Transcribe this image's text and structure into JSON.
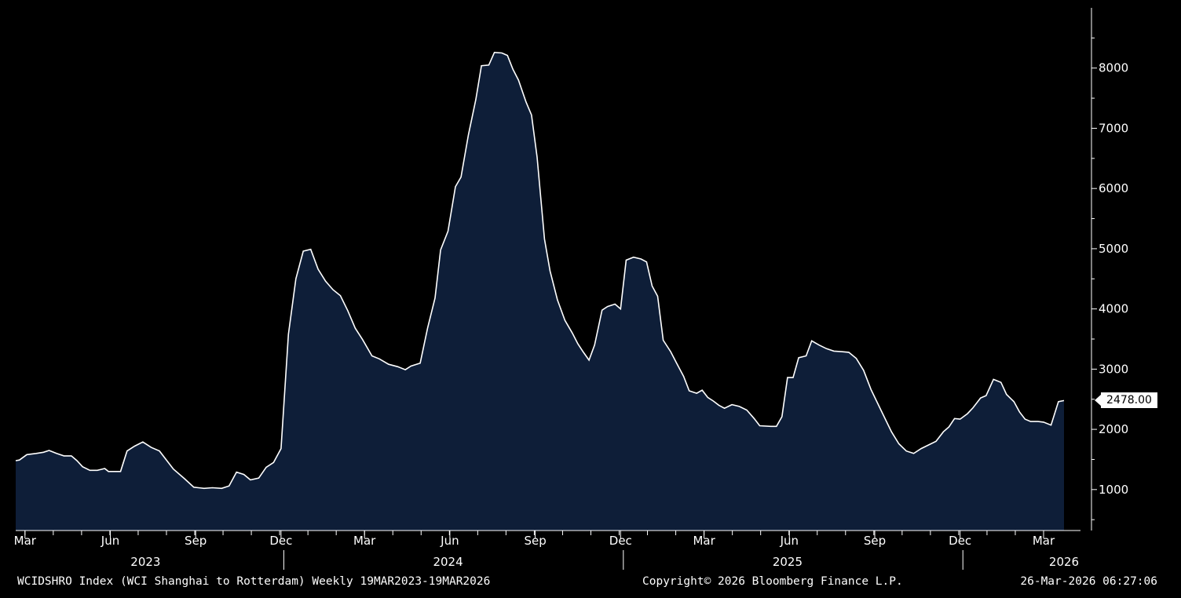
{
  "footer": {
    "left": "WCIDSHRO Index (WCI Shanghai to Rotterdam) Weekly 19MAR2023-19MAR2026",
    "center": "Copyright© 2026 Bloomberg Finance L.P.",
    "right": "26-Mar-2026 06:27:06"
  },
  "last_value_label": "2478.00",
  "colors": {
    "background": "#000000",
    "area_fill": "#0e1e38",
    "line": "#ffffff"
  },
  "chart_data": {
    "type": "area",
    "title": "",
    "xlabel": "",
    "ylabel": "",
    "series": [
      {
        "values": [
          [
            0,
            1480
          ],
          [
            4,
            1490
          ],
          [
            12,
            1580
          ],
          [
            22,
            1600
          ],
          [
            30,
            1620
          ],
          [
            36,
            1650
          ],
          [
            44,
            1600
          ],
          [
            52,
            1560
          ],
          [
            60,
            1560
          ],
          [
            66,
            1480
          ],
          [
            72,
            1380
          ],
          [
            80,
            1320
          ],
          [
            88,
            1320
          ],
          [
            96,
            1350
          ],
          [
            100,
            1300
          ],
          [
            108,
            1300
          ],
          [
            113,
            1300
          ],
          [
            120,
            1640
          ],
          [
            128,
            1720
          ],
          [
            137,
            1790
          ],
          [
            146,
            1700
          ],
          [
            155,
            1640
          ],
          [
            162,
            1500
          ],
          [
            170,
            1340
          ],
          [
            182,
            1180
          ],
          [
            192,
            1040
          ],
          [
            203,
            1020
          ],
          [
            212,
            1030
          ],
          [
            222,
            1020
          ],
          [
            230,
            1060
          ],
          [
            238,
            1290
          ],
          [
            246,
            1250
          ],
          [
            253,
            1160
          ],
          [
            262,
            1190
          ],
          [
            270,
            1370
          ],
          [
            278,
            1450
          ],
          [
            286,
            1680
          ],
          [
            294,
            3580
          ],
          [
            302,
            4500
          ],
          [
            310,
            4960
          ],
          [
            318,
            4990
          ],
          [
            326,
            4660
          ],
          [
            334,
            4460
          ],
          [
            342,
            4320
          ],
          [
            350,
            4220
          ],
          [
            358,
            3970
          ],
          [
            366,
            3680
          ],
          [
            374,
            3490
          ],
          [
            384,
            3220
          ],
          [
            392,
            3170
          ],
          [
            402,
            3080
          ],
          [
            412,
            3040
          ],
          [
            420,
            2990
          ],
          [
            426,
            3050
          ],
          [
            436,
            3100
          ],
          [
            444,
            3680
          ],
          [
            452,
            4180
          ],
          [
            458,
            4980
          ],
          [
            466,
            5290
          ],
          [
            474,
            6030
          ],
          [
            480,
            6190
          ],
          [
            488,
            6890
          ],
          [
            496,
            7480
          ],
          [
            502,
            8040
          ],
          [
            510,
            8050
          ],
          [
            516,
            8260
          ],
          [
            524,
            8250
          ],
          [
            530,
            8210
          ],
          [
            536,
            7980
          ],
          [
            542,
            7800
          ],
          [
            550,
            7440
          ],
          [
            556,
            7220
          ],
          [
            562,
            6520
          ],
          [
            570,
            5160
          ],
          [
            576,
            4630
          ],
          [
            584,
            4150
          ],
          [
            592,
            3810
          ],
          [
            600,
            3600
          ],
          [
            606,
            3420
          ],
          [
            612,
            3280
          ],
          [
            618,
            3150
          ],
          [
            624,
            3400
          ],
          [
            632,
            3980
          ],
          [
            638,
            4040
          ],
          [
            646,
            4080
          ],
          [
            652,
            4000
          ],
          [
            658,
            4810
          ],
          [
            666,
            4860
          ],
          [
            674,
            4830
          ],
          [
            680,
            4780
          ],
          [
            686,
            4380
          ],
          [
            692,
            4210
          ],
          [
            698,
            3480
          ],
          [
            706,
            3290
          ],
          [
            712,
            3110
          ],
          [
            720,
            2880
          ],
          [
            726,
            2640
          ],
          [
            734,
            2600
          ],
          [
            740,
            2650
          ],
          [
            746,
            2530
          ],
          [
            752,
            2470
          ],
          [
            758,
            2400
          ],
          [
            764,
            2350
          ],
          [
            772,
            2410
          ],
          [
            780,
            2380
          ],
          [
            788,
            2320
          ],
          [
            796,
            2180
          ],
          [
            802,
            2060
          ],
          [
            814,
            2050
          ],
          [
            820,
            2050
          ],
          [
            826,
            2210
          ],
          [
            832,
            2860
          ],
          [
            838,
            2860
          ],
          [
            844,
            3190
          ],
          [
            852,
            3220
          ],
          [
            858,
            3470
          ],
          [
            866,
            3400
          ],
          [
            874,
            3340
          ],
          [
            882,
            3300
          ],
          [
            890,
            3290
          ],
          [
            898,
            3280
          ],
          [
            906,
            3180
          ],
          [
            914,
            2980
          ],
          [
            922,
            2660
          ],
          [
            932,
            2340
          ],
          [
            944,
            1960
          ],
          [
            952,
            1760
          ],
          [
            960,
            1640
          ],
          [
            968,
            1600
          ],
          [
            976,
            1680
          ],
          [
            984,
            1740
          ],
          [
            992,
            1800
          ],
          [
            1000,
            1960
          ],
          [
            1006,
            2040
          ],
          [
            1012,
            2180
          ],
          [
            1018,
            2170
          ],
          [
            1026,
            2260
          ],
          [
            1032,
            2360
          ],
          [
            1040,
            2520
          ],
          [
            1046,
            2560
          ],
          [
            1054,
            2830
          ],
          [
            1062,
            2780
          ],
          [
            1068,
            2580
          ],
          [
            1076,
            2460
          ],
          [
            1082,
            2290
          ],
          [
            1088,
            2170
          ],
          [
            1094,
            2130
          ],
          [
            1102,
            2130
          ],
          [
            1108,
            2120
          ],
          [
            1116,
            2070
          ],
          [
            1124,
            2460
          ],
          [
            1130,
            2478
          ]
        ]
      }
    ],
    "x_min": 0,
    "x_max": 1130,
    "y_ticks": [
      1000,
      2000,
      3000,
      4000,
      5000,
      6000,
      7000,
      8000
    ],
    "y_min": 320,
    "y_max": 9000,
    "x_ticks": [
      {
        "day": 10,
        "label": "Mar"
      },
      {
        "day": 102,
        "label": "Jun"
      },
      {
        "day": 194,
        "label": "Sep"
      },
      {
        "day": 286,
        "label": "Dec"
      },
      {
        "day": 376,
        "label": "Mar"
      },
      {
        "day": 468,
        "label": "Jun"
      },
      {
        "day": 560,
        "label": "Sep"
      },
      {
        "day": 652,
        "label": "Dec"
      },
      {
        "day": 742,
        "label": "Mar"
      },
      {
        "day": 834,
        "label": "Jun"
      },
      {
        "day": 926,
        "label": "Sep"
      },
      {
        "day": 1018,
        "label": "Dec"
      },
      {
        "day": 1108,
        "label": "Mar"
      }
    ],
    "year_labels": [
      {
        "day": 140,
        "label": "2023"
      },
      {
        "day": 466,
        "label": "2024"
      },
      {
        "day": 832,
        "label": "2025"
      },
      {
        "day": 1130,
        "label": "2026"
      }
    ],
    "year_separators": [
      289,
      655,
      1021
    ],
    "grid": false,
    "y_axis_position": "right"
  }
}
